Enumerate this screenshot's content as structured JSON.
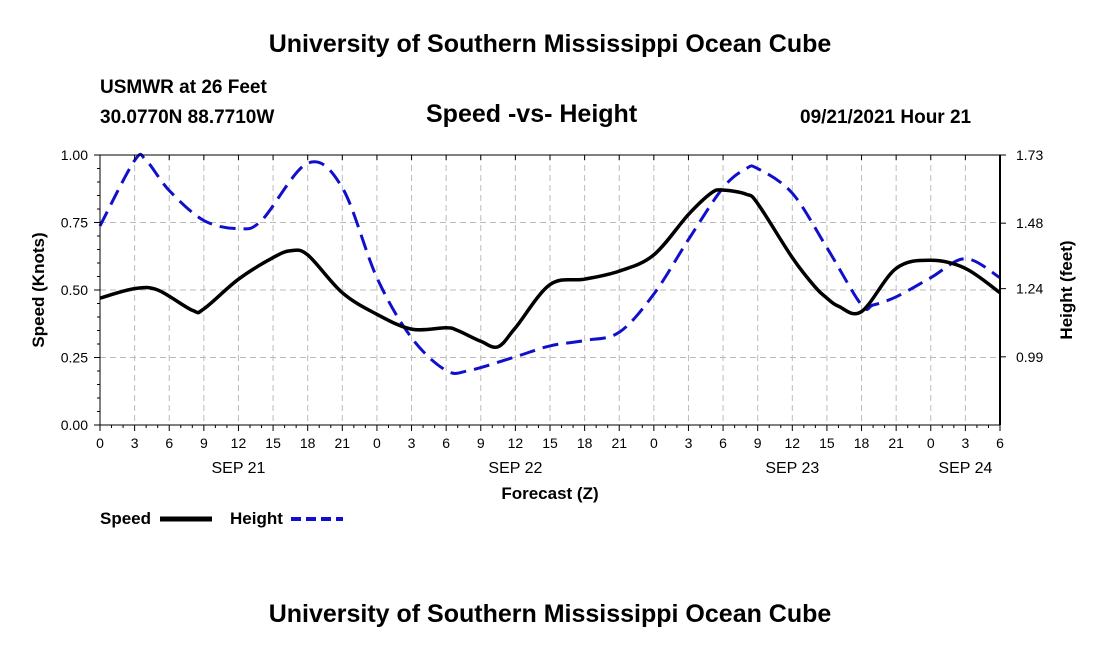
{
  "header": {
    "title": "University of Southern Mississippi Ocean Cube",
    "station": "USMWR at 26 Feet",
    "coords": "30.0770N  88.7710W",
    "subtitle": "Speed -vs- Height",
    "datetime": "09/21/2021 Hour 21"
  },
  "footer": {
    "title": "University of Southern Mississippi Ocean Cube"
  },
  "legend": {
    "speed_label": "Speed",
    "height_label": "Height"
  },
  "colors": {
    "speed": "#000000",
    "height": "#1010cc",
    "grid": "#bbbbbb"
  },
  "chart_data": {
    "type": "line",
    "title": "Speed -vs- Height",
    "xlabel": "Forecast (Z)",
    "ylabel": "Speed (Knots)",
    "y2label": "Height (feet)",
    "x_unit": "hours since SEP 21 00Z",
    "xlim": [
      0,
      78
    ],
    "ylim": [
      0,
      1.0
    ],
    "y2lim": [
      0.74,
      1.73
    ],
    "x_ticks": [
      0,
      3,
      6,
      9,
      12,
      15,
      18,
      21,
      24,
      27,
      30,
      33,
      36,
      39,
      42,
      45,
      48,
      51,
      54,
      57,
      60,
      63,
      66,
      69,
      72,
      75,
      78
    ],
    "x_tick_labels": [
      "0",
      "3",
      "6",
      "9",
      "12",
      "15",
      "18",
      "21",
      "0",
      "3",
      "6",
      "9",
      "12",
      "15",
      "18",
      "21",
      "0",
      "3",
      "6",
      "9",
      "12",
      "15",
      "18",
      "21",
      "0",
      "3",
      "6"
    ],
    "date_labels": [
      {
        "x": 12,
        "label": "SEP 21"
      },
      {
        "x": 36,
        "label": "SEP 22"
      },
      {
        "x": 60,
        "label": "SEP 23"
      },
      {
        "x": 75,
        "label": "SEP 24"
      }
    ],
    "y_ticks": [
      0.0,
      0.25,
      0.5,
      0.75,
      1.0
    ],
    "y_tick_labels": [
      "0.00",
      "0.25",
      "0.50",
      "0.75",
      "1.00"
    ],
    "y2_ticks": [
      0.99,
      1.24,
      1.48,
      1.73
    ],
    "y2_tick_labels": [
      "0.99",
      "1.24",
      "1.48",
      "1.73"
    ],
    "series": [
      {
        "name": "Speed",
        "axis": "left",
        "style": "solid",
        "x": [
          0,
          3,
          5,
          8,
          9,
          12,
          15,
          16.5,
          18,
          21,
          24,
          27,
          30,
          31,
          33,
          34.5,
          36,
          39,
          42,
          45,
          48,
          51,
          53,
          54,
          56,
          57,
          60,
          62,
          63,
          64,
          66,
          69,
          72,
          75,
          78
        ],
        "y": [
          0.47,
          0.505,
          0.5,
          0.425,
          0.43,
          0.54,
          0.62,
          0.645,
          0.63,
          0.49,
          0.41,
          0.355,
          0.36,
          0.35,
          0.31,
          0.29,
          0.36,
          0.52,
          0.54,
          0.57,
          0.63,
          0.78,
          0.86,
          0.87,
          0.855,
          0.82,
          0.62,
          0.51,
          0.47,
          0.44,
          0.42,
          0.58,
          0.61,
          0.58,
          0.49
        ]
      },
      {
        "name": "Height",
        "axis": "right",
        "style": "dashed",
        "x": [
          0,
          3,
          4,
          6,
          9,
          12,
          14,
          18,
          21,
          24,
          27,
          30,
          32,
          36,
          39,
          42,
          45,
          48,
          51,
          54,
          56,
          57,
          60,
          63,
          66,
          67,
          69,
          72,
          75,
          78
        ],
        "y": [
          1.47,
          1.71,
          1.71,
          1.6,
          1.49,
          1.46,
          1.49,
          1.7,
          1.61,
          1.28,
          1.06,
          0.94,
          0.94,
          0.99,
          1.03,
          1.05,
          1.08,
          1.22,
          1.42,
          1.61,
          1.68,
          1.68,
          1.59,
          1.39,
          1.18,
          1.18,
          1.21,
          1.28,
          1.35,
          1.28
        ]
      }
    ]
  }
}
